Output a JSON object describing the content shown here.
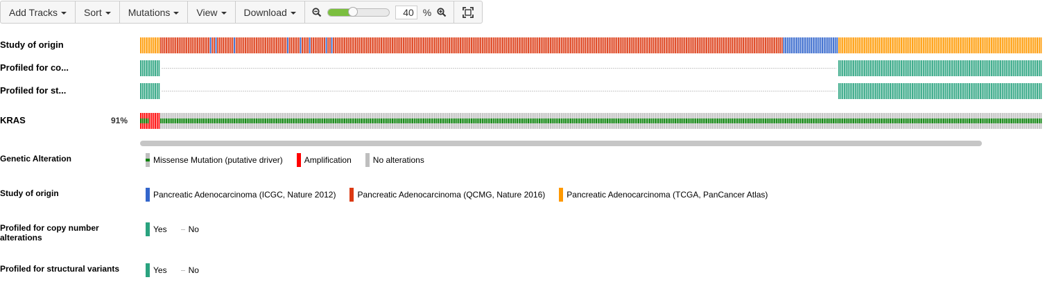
{
  "toolbar": {
    "add_tracks": "Add Tracks",
    "sort": "Sort",
    "mutations": "Mutations",
    "view": "View",
    "download": "Download",
    "zoom_value": "40",
    "zoom_unit": "%",
    "zoom_fraction": 0.4
  },
  "tracks": {
    "study_of_origin": "Study of origin",
    "profiled_cna": "Profiled for co...",
    "profiled_sv": "Profiled for st...",
    "gene": "KRAS",
    "gene_pct": "91%"
  },
  "colors": {
    "icgc": "#3366cc",
    "qcmg": "#dc3912",
    "tcga": "#ff9900",
    "profiled": "#2aa37f",
    "no_alteration": "#bebebe",
    "amplification": "#ff0000",
    "missense_driver": "#008000"
  },
  "legend": {
    "genetic_alteration": {
      "title": "Genetic Alteration",
      "items": [
        "Missense Mutation (putative driver)",
        "Amplification",
        "No alterations"
      ]
    },
    "study_of_origin": {
      "title": "Study of origin",
      "items": [
        "Pancreatic Adenocarcinoma (ICGC, Nature 2012)",
        "Pancreatic Adenocarcinoma (QCMG, Nature 2016)",
        "Pancreatic Adenocarcinoma (TCGA, PanCancer Atlas)"
      ]
    },
    "profiled_cna": {
      "title": "Profiled for copy number alterations",
      "yes": "Yes",
      "no": "No"
    },
    "profiled_sv": {
      "title": "Profiled for structural variants",
      "yes": "Yes",
      "no": "No"
    }
  }
}
